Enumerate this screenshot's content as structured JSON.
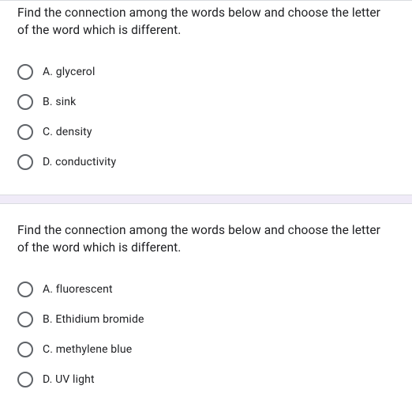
{
  "questions": [
    {
      "prompt": "Find the connection among the words below and choose the letter of the word which is different.",
      "options": [
        {
          "label": "A. glycerol"
        },
        {
          "label": "B. sink"
        },
        {
          "label": "C. density"
        },
        {
          "label": "D. conductivity"
        }
      ]
    },
    {
      "prompt": "Find the connection among the words below and choose the letter of the word which is different.",
      "options": [
        {
          "label": "A. fluorescent"
        },
        {
          "label": "B. Ethidium bromide"
        },
        {
          "label": "C. methylene blue"
        },
        {
          "label": "D. UV light"
        }
      ]
    }
  ],
  "colors": {
    "text": "#202124",
    "radio_border": "#5f6368",
    "divider": "#dadce0",
    "gap_bg": "#f0ebf8",
    "background": "#ffffff"
  },
  "typography": {
    "question_fontsize": 15.5,
    "option_fontsize": 14,
    "font_family": "Roboto, Arial, sans-serif"
  }
}
